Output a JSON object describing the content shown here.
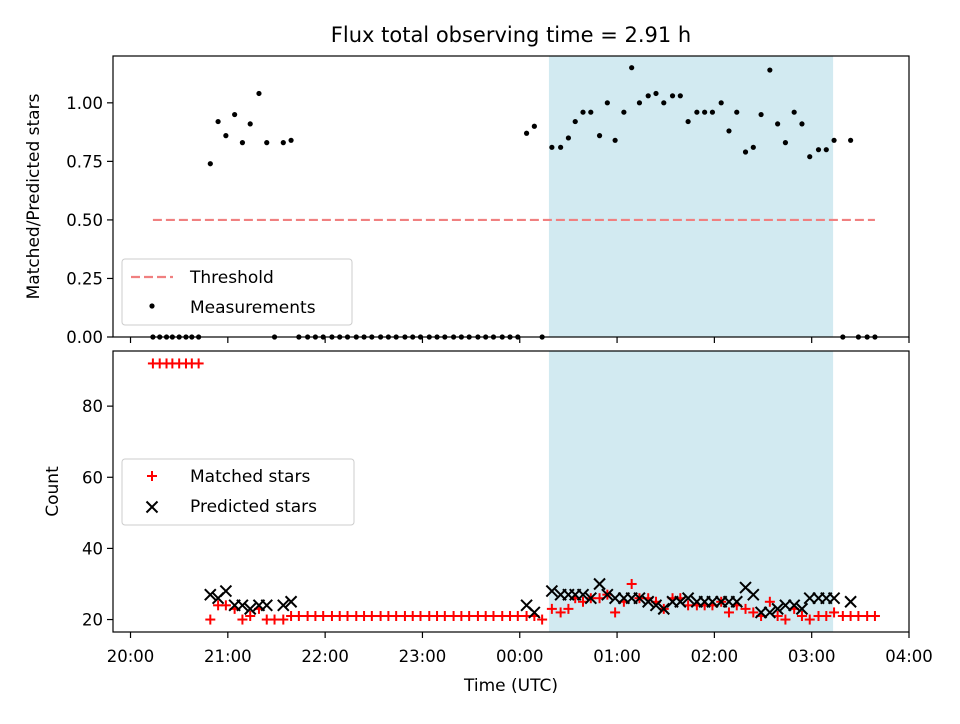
{
  "title": "Flux total observing time = 2.91 h",
  "chart_data": [
    {
      "type": "scatter",
      "panel": "top",
      "ylabel": "Matched/Predicted stars",
      "xlabel": "",
      "x_unit": "hours since 20:00 UTC",
      "xlim": [
        -0.18,
        8.0
      ],
      "ylim": [
        0,
        1.2
      ],
      "yticks": [
        0.0,
        0.25,
        0.5,
        0.75,
        1.0
      ],
      "ytick_labels": [
        "0.00",
        "0.25",
        "0.50",
        "0.75",
        "1.00"
      ],
      "shaded_region": {
        "x_start": 4.3,
        "x_end": 7.22,
        "color": "#add8e6"
      },
      "threshold": {
        "name": "Threshold",
        "value": 0.5,
        "x_start": 0.23,
        "x_end": 7.65,
        "color": "#f08080"
      },
      "legend": {
        "position": "lower-left",
        "entries": [
          "Threshold",
          "Measurements"
        ]
      },
      "series": [
        {
          "name": "Measurements",
          "marker": "dot",
          "color": "#000000",
          "points": [
            [
              0.23,
              0
            ],
            [
              0.3,
              0
            ],
            [
              0.37,
              0
            ],
            [
              0.43,
              0
            ],
            [
              0.5,
              0
            ],
            [
              0.57,
              0
            ],
            [
              0.63,
              0
            ],
            [
              0.7,
              0
            ],
            [
              0.82,
              0.74
            ],
            [
              0.9,
              0.92
            ],
            [
              0.98,
              0.86
            ],
            [
              1.07,
              0.95
            ],
            [
              1.15,
              0.83
            ],
            [
              1.23,
              0.91
            ],
            [
              1.32,
              1.04
            ],
            [
              1.4,
              0.83
            ],
            [
              1.48,
              0
            ],
            [
              1.57,
              0.83
            ],
            [
              1.65,
              0.84
            ],
            [
              1.73,
              0
            ],
            [
              1.82,
              0
            ],
            [
              1.9,
              0
            ],
            [
              1.98,
              0
            ],
            [
              2.07,
              0
            ],
            [
              2.15,
              0
            ],
            [
              2.23,
              0
            ],
            [
              2.32,
              0
            ],
            [
              2.4,
              0
            ],
            [
              2.48,
              0
            ],
            [
              2.57,
              0
            ],
            [
              2.65,
              0
            ],
            [
              2.73,
              0
            ],
            [
              2.82,
              0
            ],
            [
              2.9,
              0
            ],
            [
              2.98,
              0
            ],
            [
              3.07,
              0
            ],
            [
              3.15,
              0
            ],
            [
              3.23,
              0
            ],
            [
              3.32,
              0
            ],
            [
              3.4,
              0
            ],
            [
              3.48,
              0
            ],
            [
              3.57,
              0
            ],
            [
              3.65,
              0
            ],
            [
              3.73,
              0
            ],
            [
              3.82,
              0
            ],
            [
              3.9,
              0
            ],
            [
              3.98,
              0
            ],
            [
              4.07,
              0.87
            ],
            [
              4.15,
              0.9
            ],
            [
              4.23,
              0
            ],
            [
              4.33,
              0.81
            ],
            [
              4.42,
              0.81
            ],
            [
              4.5,
              0.85
            ],
            [
              4.57,
              0.92
            ],
            [
              4.65,
              0.96
            ],
            [
              4.73,
              0.96
            ],
            [
              4.82,
              0.86
            ],
            [
              4.9,
              1.0
            ],
            [
              4.98,
              0.84
            ],
            [
              5.07,
              0.96
            ],
            [
              5.15,
              1.15
            ],
            [
              5.23,
              1.0
            ],
            [
              5.32,
              1.03
            ],
            [
              5.4,
              1.04
            ],
            [
              5.48,
              1.0
            ],
            [
              5.57,
              1.03
            ],
            [
              5.65,
              1.03
            ],
            [
              5.73,
              0.92
            ],
            [
              5.82,
              0.96
            ],
            [
              5.9,
              0.96
            ],
            [
              5.98,
              0.96
            ],
            [
              6.07,
              1.0
            ],
            [
              6.15,
              0.88
            ],
            [
              6.23,
              0.96
            ],
            [
              6.32,
              0.79
            ],
            [
              6.4,
              0.81
            ],
            [
              6.48,
              0.95
            ],
            [
              6.57,
              1.14
            ],
            [
              6.65,
              0.91
            ],
            [
              6.73,
              0.83
            ],
            [
              6.82,
              0.96
            ],
            [
              6.9,
              0.91
            ],
            [
              6.98,
              0.77
            ],
            [
              7.07,
              0.8
            ],
            [
              7.15,
              0.8
            ],
            [
              7.23,
              0.84
            ],
            [
              7.32,
              0
            ],
            [
              7.4,
              0.84
            ],
            [
              7.48,
              0
            ],
            [
              7.57,
              0
            ],
            [
              7.65,
              0
            ]
          ]
        }
      ]
    },
    {
      "type": "scatter",
      "panel": "bottom",
      "ylabel": "Count",
      "xlabel": "Time (UTC)",
      "x_unit": "hours since 20:00 UTC",
      "xlim": [
        -0.18,
        8.0
      ],
      "ylim": [
        16.5,
        95.5
      ],
      "yticks": [
        20,
        40,
        60,
        80
      ],
      "ytick_labels": [
        "20",
        "40",
        "60",
        "80"
      ],
      "xticks": [
        0,
        1,
        2,
        3,
        4,
        5,
        6,
        7,
        8
      ],
      "xtick_labels": [
        "20:00",
        "21:00",
        "22:00",
        "23:00",
        "00:00",
        "01:00",
        "02:00",
        "03:00",
        "04:00"
      ],
      "shaded_region": {
        "x_start": 4.3,
        "x_end": 7.22,
        "color": "#add8e6"
      },
      "legend": {
        "position": "center-left",
        "entries": [
          "Matched stars",
          "Predicted stars"
        ]
      },
      "series": [
        {
          "name": "Matched stars",
          "marker": "plus",
          "color": "#ff0000",
          "points": [
            [
              0.23,
              92
            ],
            [
              0.3,
              92
            ],
            [
              0.37,
              92
            ],
            [
              0.43,
              92
            ],
            [
              0.5,
              92
            ],
            [
              0.57,
              92
            ],
            [
              0.63,
              92
            ],
            [
              0.7,
              92
            ],
            [
              0.82,
              20
            ],
            [
              0.9,
              24
            ],
            [
              0.98,
              24
            ],
            [
              1.07,
              23
            ],
            [
              1.15,
              20
            ],
            [
              1.23,
              21
            ],
            [
              1.32,
              23
            ],
            [
              1.4,
              20
            ],
            [
              1.48,
              20
            ],
            [
              1.57,
              20
            ],
            [
              1.65,
              21
            ],
            [
              1.73,
              21
            ],
            [
              1.82,
              21
            ],
            [
              1.9,
              21
            ],
            [
              1.98,
              21
            ],
            [
              2.07,
              21
            ],
            [
              2.15,
              21
            ],
            [
              2.23,
              21
            ],
            [
              2.32,
              21
            ],
            [
              2.4,
              21
            ],
            [
              2.48,
              21
            ],
            [
              2.57,
              21
            ],
            [
              2.65,
              21
            ],
            [
              2.73,
              21
            ],
            [
              2.82,
              21
            ],
            [
              2.9,
              21
            ],
            [
              2.98,
              21
            ],
            [
              3.07,
              21
            ],
            [
              3.15,
              21
            ],
            [
              3.23,
              21
            ],
            [
              3.32,
              21
            ],
            [
              3.4,
              21
            ],
            [
              3.48,
              21
            ],
            [
              3.57,
              21
            ],
            [
              3.65,
              21
            ],
            [
              3.73,
              21
            ],
            [
              3.82,
              21
            ],
            [
              3.9,
              21
            ],
            [
              3.98,
              21
            ],
            [
              4.07,
              21
            ],
            [
              4.15,
              21
            ],
            [
              4.23,
              20
            ],
            [
              4.33,
              23
            ],
            [
              4.42,
              22
            ],
            [
              4.5,
              23
            ],
            [
              4.57,
              26
            ],
            [
              4.65,
              25
            ],
            [
              4.73,
              26
            ],
            [
              4.82,
              26
            ],
            [
              4.9,
              27
            ],
            [
              4.98,
              22
            ],
            [
              5.07,
              25
            ],
            [
              5.15,
              30
            ],
            [
              5.23,
              26
            ],
            [
              5.32,
              26
            ],
            [
              5.4,
              25
            ],
            [
              5.48,
              23
            ],
            [
              5.57,
              26
            ],
            [
              5.65,
              26
            ],
            [
              5.73,
              24
            ],
            [
              5.82,
              24
            ],
            [
              5.9,
              24
            ],
            [
              5.98,
              24
            ],
            [
              6.07,
              25
            ],
            [
              6.15,
              22
            ],
            [
              6.23,
              24
            ],
            [
              6.32,
              23
            ],
            [
              6.4,
              22
            ],
            [
              6.48,
              21
            ],
            [
              6.57,
              25
            ],
            [
              6.65,
              21
            ],
            [
              6.73,
              20
            ],
            [
              6.82,
              23
            ],
            [
              6.9,
              21
            ],
            [
              6.98,
              20
            ],
            [
              7.07,
              21
            ],
            [
              7.15,
              21
            ],
            [
              7.23,
              22
            ],
            [
              7.32,
              21
            ],
            [
              7.4,
              21
            ],
            [
              7.48,
              21
            ],
            [
              7.57,
              21
            ],
            [
              7.65,
              21
            ]
          ]
        },
        {
          "name": "Predicted stars",
          "marker": "x",
          "color": "#000000",
          "points": [
            [
              0.82,
              27
            ],
            [
              0.9,
              26
            ],
            [
              0.98,
              28
            ],
            [
              1.07,
              24
            ],
            [
              1.15,
              24
            ],
            [
              1.23,
              23
            ],
            [
              1.32,
              24
            ],
            [
              1.4,
              24
            ],
            [
              1.57,
              24
            ],
            [
              1.65,
              25
            ],
            [
              4.07,
              24
            ],
            [
              4.15,
              22
            ],
            [
              4.33,
              28
            ],
            [
              4.42,
              27
            ],
            [
              4.5,
              27
            ],
            [
              4.57,
              27
            ],
            [
              4.65,
              27
            ],
            [
              4.73,
              26
            ],
            [
              4.82,
              30
            ],
            [
              4.9,
              27
            ],
            [
              4.98,
              26
            ],
            [
              5.07,
              26
            ],
            [
              5.15,
              26
            ],
            [
              5.23,
              26
            ],
            [
              5.32,
              25
            ],
            [
              5.4,
              24
            ],
            [
              5.48,
              23
            ],
            [
              5.57,
              25
            ],
            [
              5.65,
              25
            ],
            [
              5.73,
              26
            ],
            [
              5.82,
              25
            ],
            [
              5.9,
              25
            ],
            [
              5.98,
              25
            ],
            [
              6.07,
              25
            ],
            [
              6.15,
              25
            ],
            [
              6.23,
              25
            ],
            [
              6.32,
              29
            ],
            [
              6.4,
              27
            ],
            [
              6.48,
              22
            ],
            [
              6.57,
              22
            ],
            [
              6.65,
              23
            ],
            [
              6.73,
              24
            ],
            [
              6.82,
              24
            ],
            [
              6.9,
              23
            ],
            [
              6.98,
              26
            ],
            [
              7.07,
              26
            ],
            [
              7.15,
              26
            ],
            [
              7.23,
              26
            ],
            [
              7.4,
              25
            ]
          ]
        }
      ]
    }
  ]
}
